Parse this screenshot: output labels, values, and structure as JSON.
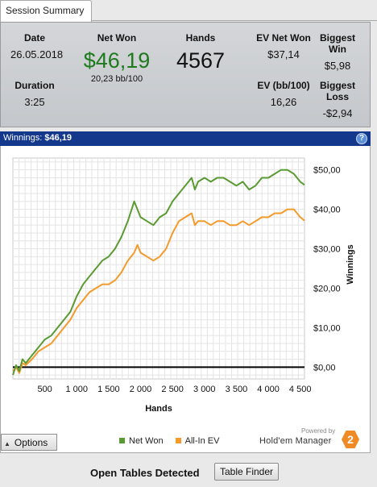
{
  "tab": {
    "label": "Session Summary"
  },
  "summary": {
    "date_label": "Date",
    "date": "26.05.2018",
    "duration_label": "Duration",
    "duration": "3:25",
    "net_won_label": "Net Won",
    "net_won": "$46,19",
    "bb_per_100": "20,23 bb/100",
    "hands_label": "Hands",
    "hands": "4567",
    "ev_net_won_label": "EV Net Won",
    "ev_net_won": "$37,14",
    "ev_bb_label": "EV (bb/100)",
    "ev_bb": "16,26",
    "biggest_win_label": "Biggest Win",
    "biggest_win": "$5,98",
    "biggest_loss_label": "Biggest Loss",
    "biggest_loss": "-$2,94"
  },
  "winnings_bar": {
    "label": "Winnings:",
    "value": "$46,19",
    "help": "?"
  },
  "options_button": {
    "label": "Options"
  },
  "legend": {
    "net_won": "Net Won",
    "allin_ev": "All-In EV"
  },
  "branding": {
    "powered": "Powered by",
    "name": "Hold'em Manager",
    "badge": "2"
  },
  "footer": {
    "text": "Open Tables Detected",
    "button": "Table Finder"
  },
  "chart_data": {
    "type": "line",
    "xlabel": "Hands",
    "ylabel": "Winnings",
    "xlim": [
      0,
      4567
    ],
    "ylim": [
      -3,
      53
    ],
    "x_ticks": [
      500,
      1000,
      1500,
      2000,
      2500,
      3000,
      3500,
      4000,
      4500
    ],
    "x_tick_labels": [
      "500",
      "1 000",
      "1 500",
      "2 000",
      "2 500",
      "3 000",
      "3 500",
      "4 000",
      "4 500"
    ],
    "y_ticks": [
      0,
      10,
      20,
      30,
      40,
      50
    ],
    "y_tick_labels": [
      "$0,00",
      "$10,00",
      "$20,00",
      "$30,00",
      "$40,00",
      "$50,00"
    ],
    "grid": true,
    "legend_position": "bottom",
    "colors": {
      "net_won": "#5a9a32",
      "allin_ev": "#f39a2a",
      "zero_line": "#000000"
    },
    "series": [
      {
        "name": "Net Won",
        "x": [
          0,
          50,
          100,
          150,
          200,
          300,
          400,
          500,
          600,
          700,
          800,
          900,
          1000,
          1100,
          1200,
          1300,
          1400,
          1500,
          1600,
          1700,
          1800,
          1900,
          1950,
          2000,
          2100,
          2200,
          2300,
          2400,
          2500,
          2600,
          2700,
          2800,
          2850,
          2900,
          3000,
          3100,
          3200,
          3300,
          3400,
          3500,
          3600,
          3700,
          3800,
          3900,
          4000,
          4100,
          4200,
          4300,
          4400,
          4500,
          4567
        ],
        "y": [
          -2,
          0.5,
          -1,
          2,
          1,
          3,
          5,
          7,
          8,
          10,
          12,
          14,
          18,
          21,
          23,
          25,
          27,
          28,
          30,
          33,
          37,
          42,
          40,
          38,
          37,
          36,
          38,
          39,
          42,
          44,
          46,
          48,
          45,
          47,
          48,
          47,
          48,
          48,
          47,
          46,
          47,
          45,
          46,
          48,
          48,
          49,
          50,
          50,
          49,
          47,
          46.19
        ]
      },
      {
        "name": "All-In EV",
        "x": [
          0,
          50,
          100,
          150,
          200,
          300,
          400,
          500,
          600,
          700,
          800,
          900,
          1000,
          1100,
          1200,
          1300,
          1400,
          1500,
          1600,
          1700,
          1800,
          1900,
          1950,
          2000,
          2100,
          2200,
          2300,
          2400,
          2500,
          2600,
          2700,
          2800,
          2850,
          2900,
          3000,
          3100,
          3200,
          3300,
          3400,
          3500,
          3600,
          3700,
          3800,
          3900,
          4000,
          4100,
          4200,
          4300,
          4400,
          4500,
          4567
        ],
        "y": [
          -1,
          0,
          -1.5,
          1,
          0.5,
          2,
          4,
          5,
          6,
          8,
          10,
          12,
          15,
          17,
          19,
          20,
          21,
          21,
          22,
          24,
          27,
          29,
          31,
          29,
          28,
          27,
          28,
          30,
          34,
          37,
          38,
          39,
          36,
          37,
          37,
          36,
          37,
          37,
          36,
          36,
          37,
          36,
          37,
          38,
          38,
          39,
          39,
          40,
          40,
          38,
          37.14
        ]
      }
    ]
  }
}
